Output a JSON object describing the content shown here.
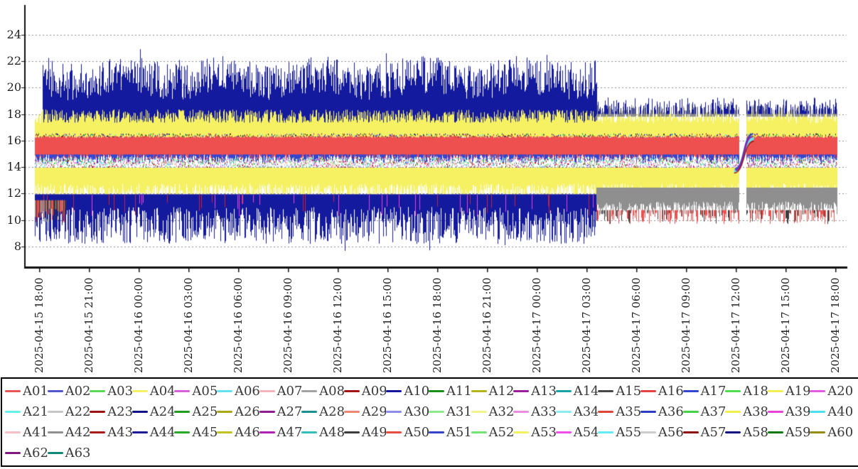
{
  "chart_data": {
    "type": "line",
    "title": "",
    "legend_position": "bottom",
    "x_axis": {
      "start": "2025-04-15 18:00",
      "end": "2025-04-17 18:00",
      "tick_interval_hours": 3,
      "label_rotation_deg": 90,
      "tick_labels": [
        "2025-04-15 18:00",
        "2025-04-15 21:00",
        "2025-04-16 00:00",
        "2025-04-16 03:00",
        "2025-04-16 06:00",
        "2025-04-16 09:00",
        "2025-04-16 12:00",
        "2025-04-16 15:00",
        "2025-04-16 18:00",
        "2025-04-16 21:00",
        "2025-04-17 00:00",
        "2025-04-17 03:00",
        "2025-04-17 06:00",
        "2025-04-17 09:00",
        "2025-04-17 12:00",
        "2025-04-17 15:00",
        "2025-04-17 18:00"
      ]
    },
    "y_axis": {
      "ticks": [
        8,
        10,
        12,
        14,
        16,
        18,
        20,
        22,
        24
      ],
      "range": [
        6.0,
        26.2
      ],
      "gridlines": "dashed"
    },
    "legend": {
      "entries": [
        {
          "label": "A01",
          "color": "#e85555"
        },
        {
          "label": "A02",
          "color": "#5156cb"
        },
        {
          "label": "A03",
          "color": "#57d957"
        },
        {
          "label": "A04",
          "color": "#f5f163"
        },
        {
          "label": "A05",
          "color": "#d65fd6"
        },
        {
          "label": "A06",
          "color": "#64e3ef"
        },
        {
          "label": "A07",
          "color": "#f2b5bb"
        },
        {
          "label": "A08",
          "color": "#a3a3a3"
        },
        {
          "label": "A09",
          "color": "#a31414"
        },
        {
          "label": "A10",
          "color": "#1414a0"
        },
        {
          "label": "A11",
          "color": "#169016"
        },
        {
          "label": "A12",
          "color": "#b3b31e"
        },
        {
          "label": "A13",
          "color": "#9a1e9a"
        },
        {
          "label": "A14",
          "color": "#16a3a3"
        },
        {
          "label": "A15",
          "color": "#474747"
        },
        {
          "label": "A16",
          "color": "#e44242"
        },
        {
          "label": "A17",
          "color": "#3346cf"
        },
        {
          "label": "A18",
          "color": "#4fdc4f"
        },
        {
          "label": "A19",
          "color": "#f2ef55"
        },
        {
          "label": "A20",
          "color": "#e05be0"
        },
        {
          "label": "A21",
          "color": "#66f0ea"
        },
        {
          "label": "A22",
          "color": "#c6c6c6"
        },
        {
          "label": "A23",
          "color": "#9c1212"
        },
        {
          "label": "A24",
          "color": "#12128f"
        },
        {
          "label": "A25",
          "color": "#1f9c1f"
        },
        {
          "label": "A26",
          "color": "#a8a816"
        },
        {
          "label": "A27",
          "color": "#8f1c8f"
        },
        {
          "label": "A28",
          "color": "#1a8f8f"
        },
        {
          "label": "A29",
          "color": "#ef8577"
        },
        {
          "label": "A30",
          "color": "#8c8cec"
        },
        {
          "label": "A31",
          "color": "#8ce98c"
        },
        {
          "label": "A32",
          "color": "#f4f28a"
        },
        {
          "label": "A33",
          "color": "#ec8ce0"
        },
        {
          "label": "A34",
          "color": "#8ceaf2"
        },
        {
          "label": "A35",
          "color": "#e04437"
        },
        {
          "label": "A36",
          "color": "#2b3bc4"
        },
        {
          "label": "A37",
          "color": "#44d344"
        },
        {
          "label": "A38",
          "color": "#f1ee49"
        },
        {
          "label": "A39",
          "color": "#e741da"
        },
        {
          "label": "A40",
          "color": "#4ae0f0"
        },
        {
          "label": "A41",
          "color": "#f5c0c6"
        },
        {
          "label": "A42",
          "color": "#8f8f8f"
        },
        {
          "label": "A43",
          "color": "#aa1b1b"
        },
        {
          "label": "A44",
          "color": "#1b1b96"
        },
        {
          "label": "A45",
          "color": "#2ba82b"
        },
        {
          "label": "A46",
          "color": "#c2c222"
        },
        {
          "label": "A47",
          "color": "#b321b3"
        },
        {
          "label": "A48",
          "color": "#35bcbc"
        },
        {
          "label": "A49",
          "color": "#3b3b3b"
        },
        {
          "label": "A50",
          "color": "#ea4c42"
        },
        {
          "label": "A51",
          "color": "#3443c9"
        },
        {
          "label": "A52",
          "color": "#74e274"
        },
        {
          "label": "A53",
          "color": "#f3f05e"
        },
        {
          "label": "A54",
          "color": "#f04de4"
        },
        {
          "label": "A55",
          "color": "#62ecf8"
        },
        {
          "label": "A56",
          "color": "#cccccc"
        },
        {
          "label": "A57",
          "color": "#8c1010"
        },
        {
          "label": "A58",
          "color": "#101080"
        },
        {
          "label": "A59",
          "color": "#107810"
        },
        {
          "label": "A60",
          "color": "#948c12"
        },
        {
          "label": "A62",
          "color": "#801880"
        },
        {
          "label": "A63",
          "color": "#108878"
        }
      ]
    },
    "annotations": {
      "regime_change_time": "2025-04-17 04:00",
      "regime_change_hour": 33.6,
      "data_gap": {
        "start_hour": 42.15,
        "end_hour": 42.65,
        "time": "2025-04-17 12:30"
      },
      "data_start_hour": -0.25,
      "data_end_hour": 48.1,
      "observed_value_extremes": [
        7.2,
        23.2
      ]
    },
    "visual_bands": [
      {
        "name": "upper-navy-region",
        "mode": "spikes_up",
        "color": "#141a9e",
        "segments": [
          [
            0.2,
            33.6
          ]
        ],
        "base": 17.35,
        "top_min": 19.3,
        "top_max": 22.1,
        "outlier_p": 0.02,
        "outlier_amp": 1.0,
        "wobble": 0.3
      },
      {
        "name": "upper-yellow-band",
        "mode": "spikes_up",
        "color": "#f5f163",
        "segments": [
          [
            -0.25,
            42.15
          ],
          [
            42.65,
            48.1
          ]
        ],
        "base": 16.25,
        "top_min": 17.3,
        "top_max": 18.35
      },
      {
        "name": "upper-gray-caps",
        "mode": "spikes_up",
        "color": "#8f8f8f",
        "segments": [
          [
            33.6,
            42.15
          ],
          [
            42.65,
            48.1
          ]
        ],
        "base": 17.8,
        "top_min": 18.0,
        "top_max": 18.75,
        "p_draw": 0.6
      },
      {
        "name": "upper-navy-tips",
        "mode": "spikes_up",
        "color": "#141a9e",
        "segments": [
          [
            33.6,
            42.15
          ],
          [
            42.65,
            48.1
          ]
        ],
        "base": 18.0,
        "top_min": 18.2,
        "top_max": 19.25,
        "p_draw": 0.5,
        "outlier_p": 0.02,
        "outlier_amp": 0.4
      },
      {
        "name": "speck-line-16",
        "mode": "specks",
        "segments": [
          [
            -0.25,
            42.15
          ],
          [
            42.65,
            48.1
          ]
        ],
        "lo": 16.2,
        "hi": 16.55,
        "density": 0.9,
        "colors": [
          "#141a9e",
          "#a31414",
          "#222222",
          "#64e3ef",
          "#169016",
          "#9a1e9a"
        ]
      },
      {
        "name": "red-band",
        "mode": "band_noisy",
        "color": "#ee5050",
        "segments": [
          [
            -0.25,
            42.15
          ],
          [
            42.65,
            48.1
          ]
        ],
        "top": 16.28,
        "top_jitter": 0.15,
        "bot": 14.78,
        "bot_jitter": 0.3
      },
      {
        "name": "blue-fringe",
        "mode": "spikes_down",
        "color": "#3346cf",
        "segments": [
          [
            -0.25,
            42.15
          ],
          [
            42.65,
            48.1
          ]
        ],
        "base": 14.95,
        "bot_min": 14.25,
        "bot_max": 14.9,
        "p_draw": 0.75
      },
      {
        "name": "mid-speck-band",
        "mode": "specks",
        "segments": [
          [
            -0.25,
            42.15
          ],
          [
            42.65,
            48.1
          ]
        ],
        "lo": 13.95,
        "hi": 14.75,
        "density": 3,
        "colors": [
          "#44d344",
          "#64e3ef",
          "#f2b5bb",
          "#8c8cec",
          "#a31414",
          "#8ce98c",
          "#ef8577",
          "#e741da"
        ]
      },
      {
        "name": "lower-yellow-band",
        "mode": "spikes_down",
        "color": "#f5f163",
        "segments": [
          [
            -0.25,
            42.15
          ],
          [
            42.65,
            48.1
          ]
        ],
        "base": 13.95,
        "bot_min": 11.55,
        "bot_max": 12.75
      },
      {
        "name": "lower-navy-region",
        "mode": "spikes_down",
        "color": "#141a9e",
        "segments": [
          [
            -0.25,
            33.6
          ]
        ],
        "base": 11.95,
        "bot_min": 8.2,
        "bot_max": 11.0,
        "outlier_p": 0.008,
        "outlier_amp": 0.9
      },
      {
        "name": "lower-red-flecks",
        "mode": "spikes_down_multi",
        "segments": [
          [
            -0.25,
            33.6
          ]
        ],
        "base": 11.9,
        "bot_min": 10.2,
        "bot_max": 11.4,
        "p_draw": 0.06,
        "colors": [
          "#c8203c",
          "#e741da"
        ]
      },
      {
        "name": "left-edge-mixed",
        "mode": "spikes_down_multi",
        "segments": [
          [
            -0.25,
            1.6
          ]
        ],
        "base": 11.5,
        "bot_min": 9.8,
        "bot_max": 10.9,
        "colors": [
          "#ee5050",
          "#8f8f8f",
          "#3b3b3b"
        ]
      },
      {
        "name": "lower-gray-band",
        "mode": "spikes_down",
        "color": "#8f8f8f",
        "segments": [
          [
            33.6,
            42.15
          ],
          [
            42.65,
            48.1
          ]
        ],
        "base": 12.45,
        "bot_min": 10.4,
        "bot_max": 11.4
      },
      {
        "name": "bottom-red-spikes",
        "mode": "spikes_down_multi",
        "segments": [
          [
            33.6,
            42.15
          ],
          [
            42.65,
            48.1
          ]
        ],
        "base": 10.75,
        "bot_min": 9.7,
        "bot_max": 10.6,
        "p_draw": 0.6,
        "colors": [
          "#ee5050",
          "#ee5050",
          "#ee5050",
          "#3b3b3b"
        ]
      }
    ],
    "gap_curves": [
      {
        "color": "#64e3ef",
        "width": 4,
        "h0": 41.9,
        "v0": 13.7,
        "h1": 43.1,
        "v1": 16.15
      },
      {
        "color": "#3346cf",
        "width": 2.5,
        "h0": 41.95,
        "v0": 13.85,
        "h1": 43.05,
        "v1": 16.5
      },
      {
        "color": "#9a1e9a",
        "width": 2,
        "h0": 42.0,
        "v0": 13.75,
        "h1": 43.0,
        "v1": 16.3
      },
      {
        "color": "#a31414",
        "width": 1.5,
        "h0": 41.9,
        "v0": 13.55,
        "h1": 43.1,
        "v1": 15.95
      }
    ]
  }
}
